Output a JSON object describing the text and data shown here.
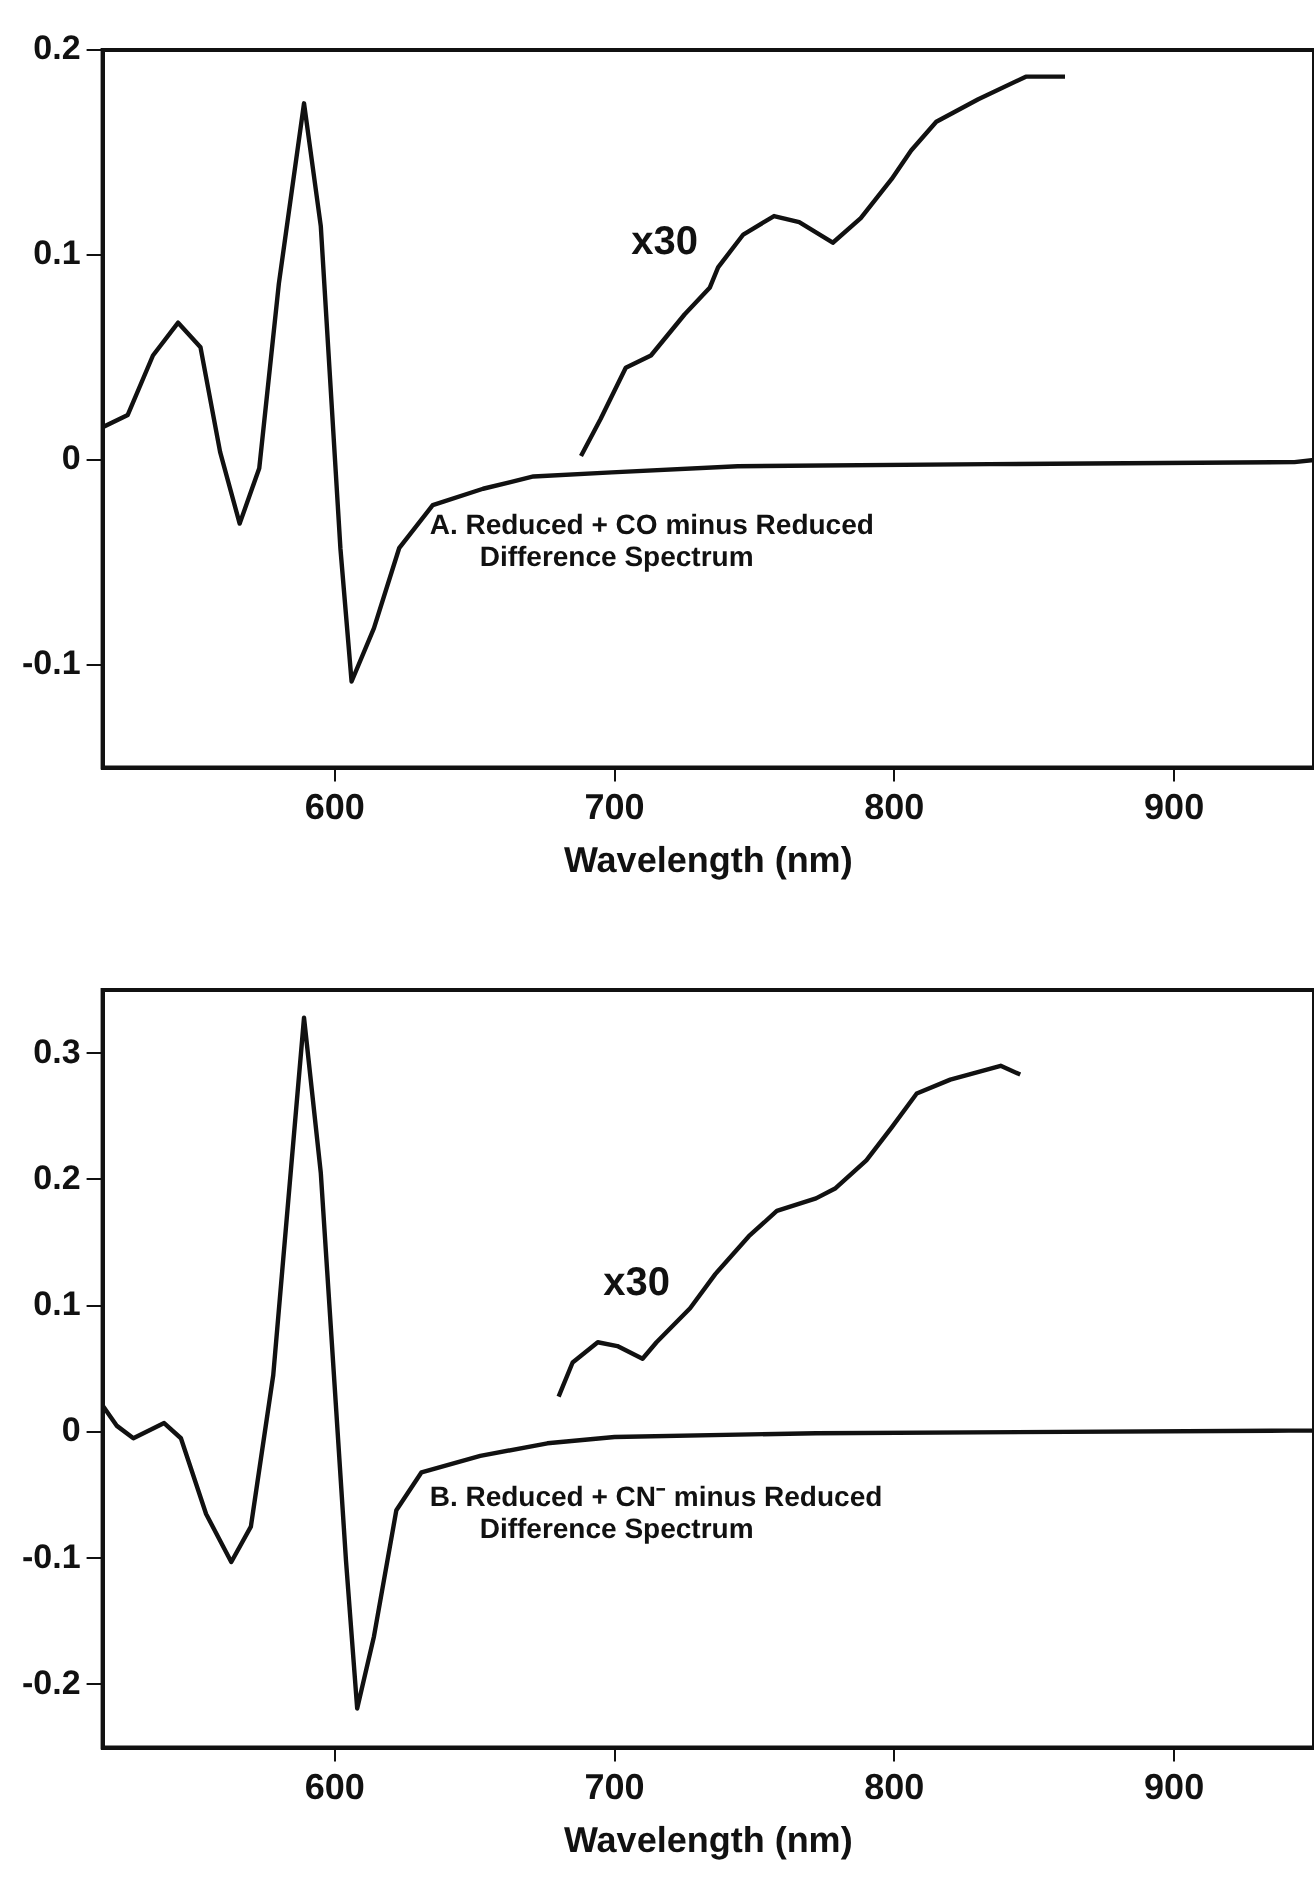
{
  "chart_data": [
    {
      "type": "line",
      "xlabel": "Wavelength (nm)",
      "xlim": [
        517,
        950
      ],
      "ylim": [
        -0.15,
        0.2
      ],
      "xticks": [
        600,
        700,
        800,
        900
      ],
      "yticks": [
        -0.1,
        0,
        0.1,
        0.2
      ],
      "grid": false,
      "series": [
        {
          "color": "#111111",
          "x": [
            517,
            526,
            535,
            544,
            552,
            559,
            566,
            573,
            580,
            589,
            595,
            602,
            606,
            614,
            623,
            635,
            653,
            671,
            699,
            744,
            834,
            943,
            950
          ],
          "values": [
            0.016,
            0.022,
            0.051,
            0.067,
            0.055,
            0.004,
            -0.031,
            -0.004,
            0.086,
            0.174,
            0.114,
            -0.043,
            -0.108,
            -0.082,
            -0.043,
            -0.022,
            -0.014,
            -0.008,
            -0.006,
            -0.003,
            -0.002,
            -0.001,
            0
          ]
        },
        {
          "color": "#111111",
          "x": [
            688,
            695,
            704,
            713,
            725,
            734,
            737,
            746,
            757,
            766,
            778,
            788,
            799,
            806,
            815,
            830,
            847,
            861
          ],
          "values": [
            0.002,
            0.02,
            0.045,
            0.051,
            0.071,
            0.084,
            0.094,
            0.11,
            0.119,
            0.116,
            0.106,
            0.118,
            0.137,
            0.151,
            0.165,
            0.176,
            0.187,
            0.187
          ]
        }
      ],
      "annotations": [
        "x30",
        "A. Reduced + CO minus Reduced Difference Spectrum"
      ]
    },
    {
      "type": "line",
      "xlabel": "Wavelength (nm)",
      "xlim": [
        517,
        950
      ],
      "ylim": [
        -0.25,
        0.35
      ],
      "xticks": [
        600,
        700,
        800,
        900
      ],
      "yticks": [
        -0.2,
        -0.1,
        0,
        0.1,
        0.2,
        0.3
      ],
      "grid": false,
      "series": [
        {
          "color": "#111111",
          "x": [
            517,
            522,
            528,
            539,
            545,
            554,
            563,
            570,
            578,
            589,
            595,
            604,
            608,
            614,
            622,
            631,
            652,
            676,
            700,
            772,
            941,
            950
          ],
          "values": [
            0.021,
            0.005,
            -0.005,
            0.007,
            -0.005,
            -0.065,
            -0.103,
            -0.075,
            0.045,
            0.328,
            0.205,
            -0.102,
            -0.219,
            -0.162,
            -0.062,
            -0.032,
            -0.019,
            -0.009,
            -0.004,
            -0.001,
            0.001,
            0.001
          ]
        },
        {
          "color": "#111111",
          "x": [
            680,
            685,
            694,
            701,
            710,
            715,
            727,
            736,
            748,
            758,
            772,
            779,
            790,
            799,
            808,
            820,
            838,
            845
          ],
          "values": [
            0.028,
            0.055,
            0.071,
            0.068,
            0.058,
            0.071,
            0.098,
            0.125,
            0.155,
            0.175,
            0.185,
            0.193,
            0.215,
            0.241,
            0.268,
            0.279,
            0.29,
            0.283
          ]
        }
      ],
      "annotations": [
        "x30",
        "B. Reduced + CN⁻ minus Reduced Difference Spectrum"
      ]
    }
  ]
}
